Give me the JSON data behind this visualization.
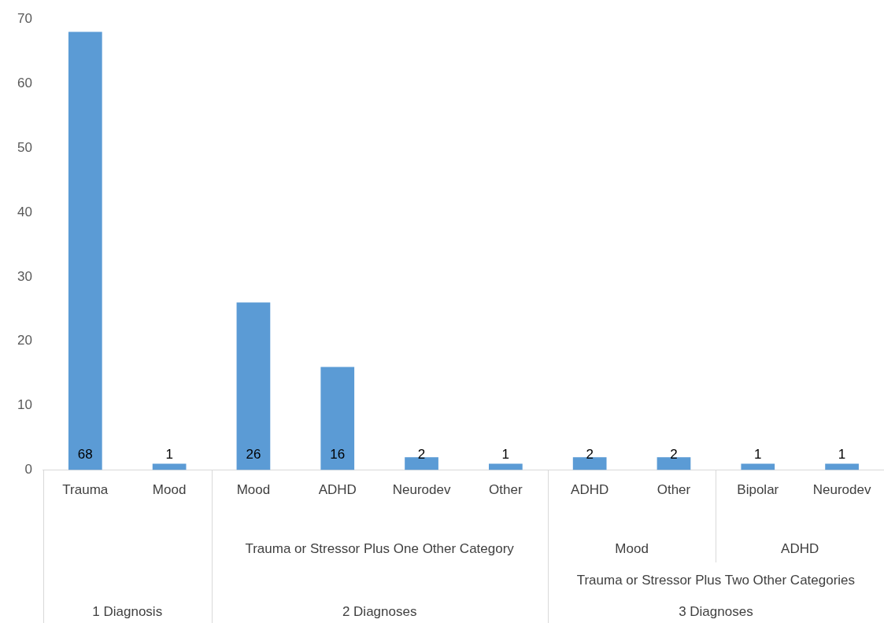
{
  "chart_data": {
    "type": "bar",
    "categories": [
      "Trauma",
      "Mood",
      "Mood",
      "ADHD",
      "Neurodev",
      "Other",
      "ADHD",
      "Other",
      "Bipolar",
      "Neurodev"
    ],
    "values": [
      68,
      1,
      26,
      16,
      2,
      1,
      2,
      2,
      1,
      1
    ],
    "color": "#5b9bd5",
    "ylim": [
      0,
      70
    ],
    "yticks": [
      0,
      10,
      20,
      30,
      40,
      50,
      60,
      70
    ],
    "grid": false,
    "legend": false,
    "data_labels": true,
    "annotations": [
      "Trauma or Stressor Plus One Other Category",
      "Mood",
      "ADHD",
      "Trauma or Stressor Plus Two Other Categories",
      "1 Diagnosis",
      "2 Diagnoses",
      "3 Diagnoses"
    ]
  }
}
